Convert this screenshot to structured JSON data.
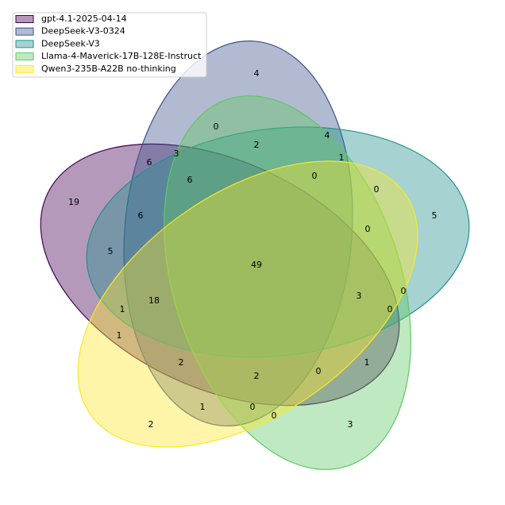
{
  "chart_data": {
    "type": "venn",
    "series": [
      {
        "name": "gpt-4.1-2025-04-14",
        "color": "#440154"
      },
      {
        "name": "DeepSeek-V3-0324",
        "color": "#3b528b"
      },
      {
        "name": "DeepSeek-V3",
        "color": "#21918c"
      },
      {
        "name": "Llama-4-Maverick-17B-128E-Instruct",
        "color": "#5ec962"
      },
      {
        "name": "Qwen3-235B-A22B no-thinking",
        "color": "#fde725"
      }
    ],
    "values": [
      4,
      0,
      4,
      2,
      6,
      3,
      1,
      6,
      0,
      0,
      19,
      5,
      6,
      0,
      5,
      49,
      3,
      0,
      18,
      1,
      0,
      1,
      2,
      1,
      0,
      2,
      1,
      0,
      0,
      2,
      3
    ],
    "legend": "upper left"
  }
}
